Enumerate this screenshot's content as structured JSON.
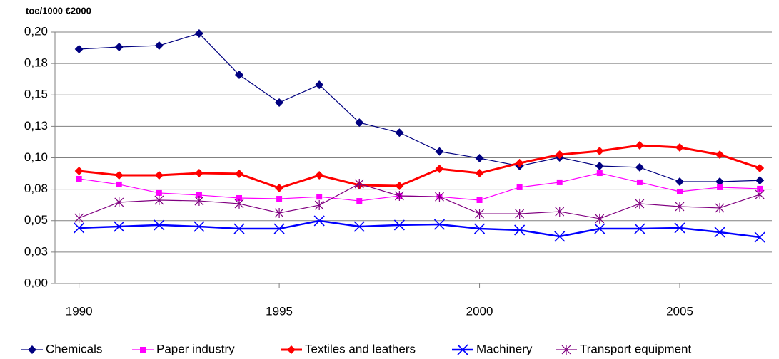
{
  "chart_data": {
    "type": "line",
    "title": "toe/1000 €2000",
    "x": [
      1990,
      1991,
      1992,
      1993,
      1994,
      1995,
      1996,
      1997,
      1998,
      1999,
      2000,
      2001,
      2002,
      2003,
      2004,
      2005,
      2006,
      2007
    ],
    "xlim": [
      1989.4,
      2007.3
    ],
    "xticks": [
      1990,
      1995,
      2000,
      2005
    ],
    "ylim": [
      0,
      0.2
    ],
    "yticks": [
      {
        "value": 0,
        "label": "0,00"
      },
      {
        "value": 0.025,
        "label": "0,03"
      },
      {
        "value": 0.05,
        "label": "0,05"
      },
      {
        "value": 0.075,
        "label": "0,08"
      },
      {
        "value": 0.1,
        "label": "0,10"
      },
      {
        "value": 0.125,
        "label": "0,13"
      },
      {
        "value": 0.15,
        "label": "0,15"
      },
      {
        "value": 0.175,
        "label": "0,18"
      },
      {
        "value": 0.2,
        "label": "0,20"
      }
    ],
    "grid": true,
    "legend": "bottom",
    "series": [
      {
        "name": "Chemicals",
        "color": "#000080",
        "marker": "diamond",
        "line_width": 1.2,
        "values": [
          0.1864,
          0.1881,
          0.1892,
          0.1989,
          0.166,
          0.1439,
          0.158,
          0.128,
          0.12,
          0.105,
          0.0997,
          0.0935,
          0.1003,
          0.0935,
          0.0924,
          0.081,
          0.081,
          0.082
        ]
      },
      {
        "name": "Paper industry",
        "color": "#ff00ff",
        "marker": "square",
        "line_width": 1.2,
        "values": [
          0.0833,
          0.0788,
          0.072,
          0.0703,
          0.068,
          0.0674,
          0.069,
          0.0657,
          0.0697,
          0.069,
          0.0663,
          0.0765,
          0.0805,
          0.0878,
          0.0805,
          0.0731,
          0.0765,
          0.0754
        ]
      },
      {
        "name": "Textiles and leathers",
        "color": "#ff0000",
        "marker": "diamond",
        "line_width": 3,
        "values": [
          0.0895,
          0.0861,
          0.0861,
          0.0878,
          0.0873,
          0.0759,
          0.0861,
          0.0782,
          0.0776,
          0.0912,
          0.0878,
          0.0958,
          0.1025,
          0.1054,
          0.1099,
          0.1082,
          0.1025,
          0.0918
        ]
      },
      {
        "name": "Machinery",
        "color": "#0000ff",
        "marker": "x",
        "line_width": 2.5,
        "values": [
          0.0442,
          0.0453,
          0.0465,
          0.0453,
          0.0436,
          0.0436,
          0.0499,
          0.0453,
          0.0465,
          0.047,
          0.0436,
          0.0425,
          0.0374,
          0.0436,
          0.0436,
          0.0442,
          0.0408,
          0.0368
        ]
      },
      {
        "name": "Transport equipment",
        "color": "#800080",
        "marker": "star",
        "line_width": 1.2,
        "values": [
          0.0521,
          0.0646,
          0.0663,
          0.0657,
          0.0635,
          0.0561,
          0.0623,
          0.0793,
          0.0697,
          0.069,
          0.0555,
          0.0555,
          0.0572,
          0.0516,
          0.0635,
          0.0612,
          0.0601,
          0.0708
        ]
      }
    ]
  }
}
